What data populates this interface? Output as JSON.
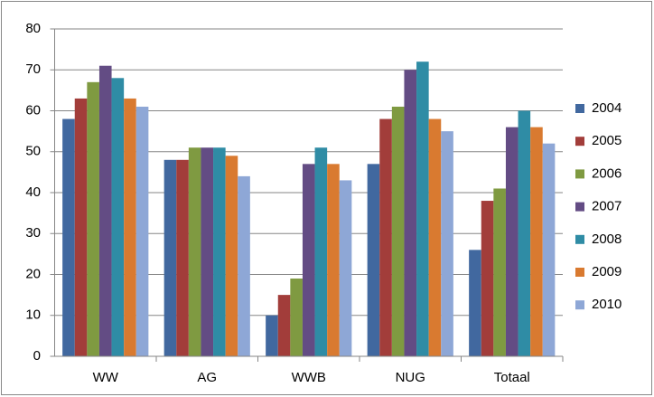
{
  "chart_data": {
    "type": "bar",
    "categories": [
      "WW",
      "AG",
      "WWB",
      "NUG",
      "Totaal"
    ],
    "series": [
      {
        "name": "2004",
        "color": "#41689f",
        "values": [
          58,
          48,
          10,
          47,
          26
        ]
      },
      {
        "name": "2005",
        "color": "#a23d3a",
        "values": [
          63,
          48,
          15,
          58,
          38
        ]
      },
      {
        "name": "2006",
        "color": "#7f9a41",
        "values": [
          67,
          51,
          19,
          61,
          41
        ]
      },
      {
        "name": "2007",
        "color": "#634c84",
        "values": [
          71,
          51,
          47,
          70,
          56
        ]
      },
      {
        "name": "2008",
        "color": "#2f8ca5",
        "values": [
          68,
          51,
          51,
          72,
          60
        ]
      },
      {
        "name": "2009",
        "color": "#d97a30",
        "values": [
          63,
          49,
          47,
          58,
          56
        ]
      },
      {
        "name": "2010",
        "color": "#8ea7d6",
        "values": [
          61,
          44,
          43,
          55,
          52
        ]
      }
    ],
    "ylim": [
      0,
      80
    ],
    "yticks": [
      0,
      10,
      20,
      30,
      40,
      50,
      60,
      70,
      80
    ],
    "grid": true,
    "legend": "right"
  }
}
